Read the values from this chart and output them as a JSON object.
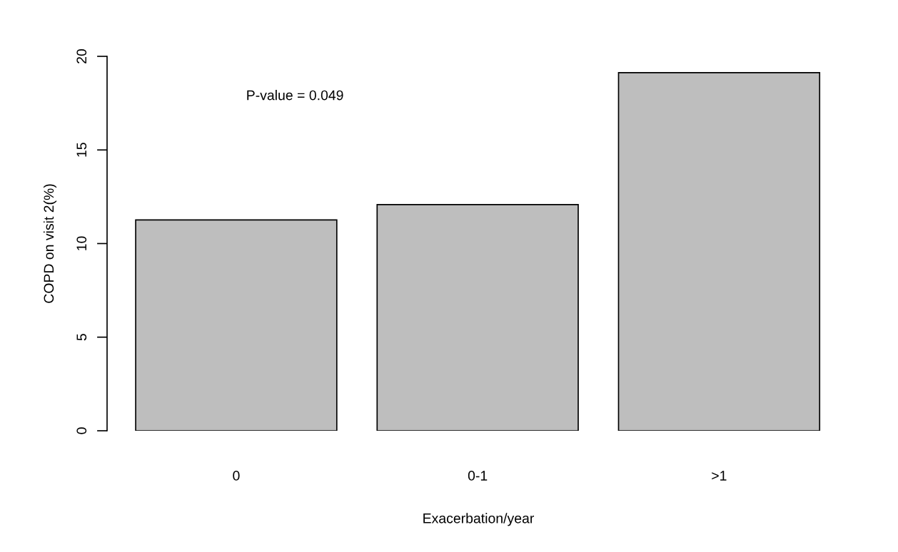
{
  "chart_data": {
    "type": "bar",
    "categories": [
      "0",
      "0-1",
      ">1"
    ],
    "values": [
      11.26,
      12.08,
      19.13
    ],
    "color": "#bebebe",
    "xlabel": "Exacerbation/year",
    "ylabel": "COPD on visit 2(%)",
    "ylim": [
      0,
      20
    ],
    "yticks": [
      0,
      5,
      10,
      15,
      20
    ],
    "annotations": [
      "P-value = 0.049"
    ],
    "grid": false,
    "legend": false
  }
}
